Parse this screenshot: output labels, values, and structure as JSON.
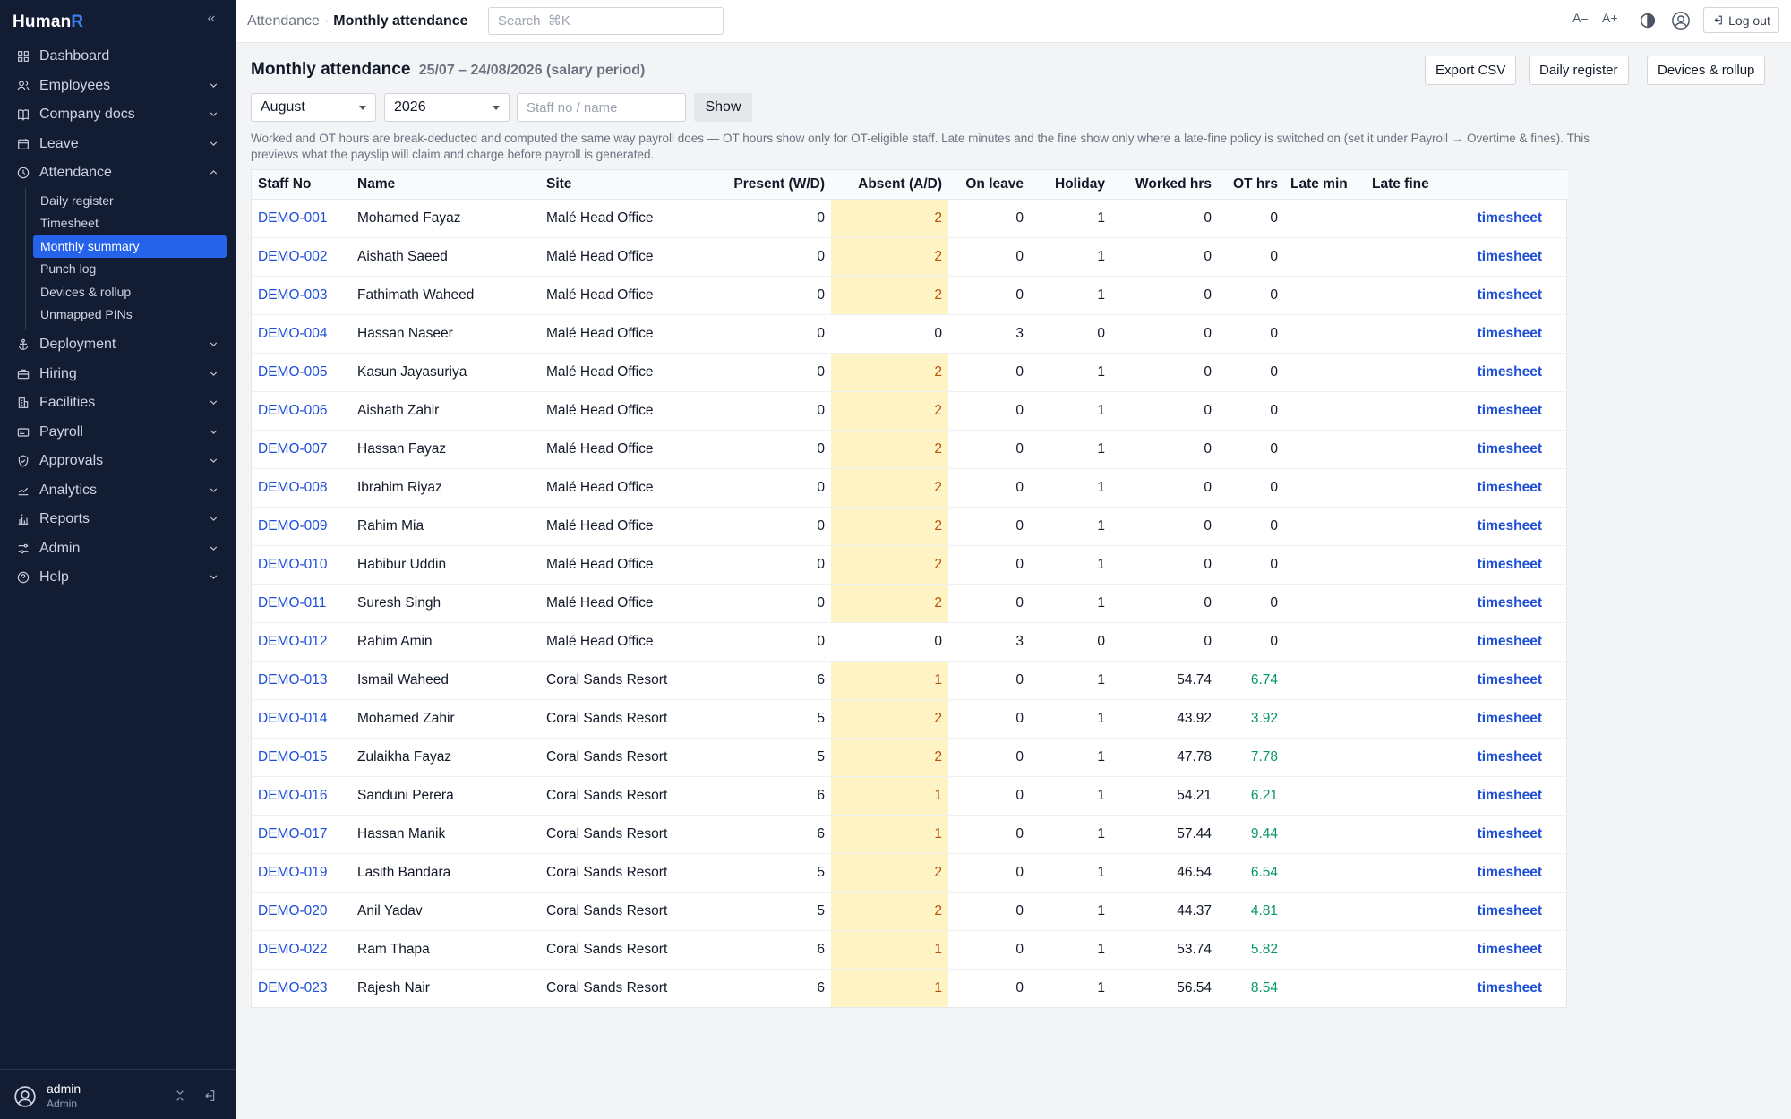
{
  "app": {
    "brand_main": "Human",
    "brand_accent": "R"
  },
  "sidebar": {
    "items": [
      {
        "key": "dashboard",
        "label": "Dashboard",
        "icon": "grid-icon",
        "chev": false
      },
      {
        "key": "employees",
        "label": "Employees",
        "icon": "users-icon",
        "chev": true
      },
      {
        "key": "company-docs",
        "label": "Company docs",
        "icon": "book-icon",
        "chev": true
      },
      {
        "key": "leave",
        "label": "Leave",
        "icon": "calendar-icon",
        "chev": true
      },
      {
        "key": "attendance",
        "label": "Attendance",
        "icon": "clock-icon",
        "chev": true,
        "open": true
      },
      {
        "key": "deployment",
        "label": "Deployment",
        "icon": "anchor-icon",
        "chev": true
      },
      {
        "key": "hiring",
        "label": "Hiring",
        "icon": "briefcase-icon",
        "chev": true
      },
      {
        "key": "facilities",
        "label": "Facilities",
        "icon": "building-icon",
        "chev": true
      },
      {
        "key": "payroll",
        "label": "Payroll",
        "icon": "wallet-icon",
        "chev": true
      },
      {
        "key": "approvals",
        "label": "Approvals",
        "icon": "shield-icon",
        "chev": true
      },
      {
        "key": "analytics",
        "label": "Analytics",
        "icon": "chart-icon",
        "chev": true
      },
      {
        "key": "reports",
        "label": "Reports",
        "icon": "report-icon",
        "chev": true
      },
      {
        "key": "admin",
        "label": "Admin",
        "icon": "sliders-icon",
        "chev": true
      },
      {
        "key": "help",
        "label": "Help",
        "icon": "help-icon",
        "chev": true
      }
    ],
    "attendance_sub": [
      {
        "label": "Daily register",
        "active": false
      },
      {
        "label": "Timesheet",
        "active": false
      },
      {
        "label": "Monthly summary",
        "active": true
      },
      {
        "label": "Punch log",
        "active": false
      },
      {
        "label": "Devices & rollup",
        "active": false
      },
      {
        "label": "Unmapped PINs",
        "active": false
      }
    ],
    "user": {
      "name": "admin",
      "role": "Admin"
    }
  },
  "topbar": {
    "breadcrumb_parent": "Attendance",
    "breadcrumb_sep": "·",
    "breadcrumb_current": "Monthly attendance",
    "search_placeholder": "Search  ⌘K",
    "font_smaller": "A–",
    "font_larger": "A+",
    "logout_label": "Log out"
  },
  "page": {
    "title": "Monthly attendance",
    "period": "25/07 – 24/08/2026 (salary period)",
    "export_label": "Export CSV",
    "daily_register_label": "Daily register",
    "devices_label": "Devices & rollup",
    "month_value": "August",
    "year_value": "2026",
    "staff_placeholder": "Staff no / name",
    "show_label": "Show",
    "note": "Worked and OT hours are break-deducted and computed the same way payroll does — OT hours show only for OT-eligible staff. Late minutes and the fine show only where a late-fine policy is switched on (set it under Payroll → Overtime & fines). This previews what the payslip will claim and charge before payroll is generated."
  },
  "table": {
    "headers": [
      "Staff No",
      "Name",
      "Site",
      "Present (W/D)",
      "Absent (A/D)",
      "On leave",
      "Holiday",
      "Worked hrs",
      "OT hrs",
      "Late min",
      "Late fine",
      ""
    ],
    "link_label": "timesheet",
    "rows": [
      {
        "staff_no": "DEMO-001",
        "name": "Mohamed Fayaz",
        "site": "Malé Head Office",
        "present": "0",
        "absent": "2",
        "on_leave": "0",
        "holiday": "1",
        "worked": "0",
        "ot": "0",
        "late_min": "",
        "late_fine": ""
      },
      {
        "staff_no": "DEMO-002",
        "name": "Aishath Saeed",
        "site": "Malé Head Office",
        "present": "0",
        "absent": "2",
        "on_leave": "0",
        "holiday": "1",
        "worked": "0",
        "ot": "0",
        "late_min": "",
        "late_fine": ""
      },
      {
        "staff_no": "DEMO-003",
        "name": "Fathimath Waheed",
        "site": "Malé Head Office",
        "present": "0",
        "absent": "2",
        "on_leave": "0",
        "holiday": "1",
        "worked": "0",
        "ot": "0",
        "late_min": "",
        "late_fine": ""
      },
      {
        "staff_no": "DEMO-004",
        "name": "Hassan Naseer",
        "site": "Malé Head Office",
        "present": "0",
        "absent": "0",
        "on_leave": "3",
        "holiday": "0",
        "worked": "0",
        "ot": "0",
        "late_min": "",
        "late_fine": ""
      },
      {
        "staff_no": "DEMO-005",
        "name": "Kasun Jayasuriya",
        "site": "Malé Head Office",
        "present": "0",
        "absent": "2",
        "on_leave": "0",
        "holiday": "1",
        "worked": "0",
        "ot": "0",
        "late_min": "",
        "late_fine": ""
      },
      {
        "staff_no": "DEMO-006",
        "name": "Aishath Zahir",
        "site": "Malé Head Office",
        "present": "0",
        "absent": "2",
        "on_leave": "0",
        "holiday": "1",
        "worked": "0",
        "ot": "0",
        "late_min": "",
        "late_fine": ""
      },
      {
        "staff_no": "DEMO-007",
        "name": "Hassan Fayaz",
        "site": "Malé Head Office",
        "present": "0",
        "absent": "2",
        "on_leave": "0",
        "holiday": "1",
        "worked": "0",
        "ot": "0",
        "late_min": "",
        "late_fine": ""
      },
      {
        "staff_no": "DEMO-008",
        "name": "Ibrahim Riyaz",
        "site": "Malé Head Office",
        "present": "0",
        "absent": "2",
        "on_leave": "0",
        "holiday": "1",
        "worked": "0",
        "ot": "0",
        "late_min": "",
        "late_fine": ""
      },
      {
        "staff_no": "DEMO-009",
        "name": "Rahim Mia",
        "site": "Malé Head Office",
        "present": "0",
        "absent": "2",
        "on_leave": "0",
        "holiday": "1",
        "worked": "0",
        "ot": "0",
        "late_min": "",
        "late_fine": ""
      },
      {
        "staff_no": "DEMO-010",
        "name": "Habibur Uddin",
        "site": "Malé Head Office",
        "present": "0",
        "absent": "2",
        "on_leave": "0",
        "holiday": "1",
        "worked": "0",
        "ot": "0",
        "late_min": "",
        "late_fine": ""
      },
      {
        "staff_no": "DEMO-011",
        "name": "Suresh Singh",
        "site": "Malé Head Office",
        "present": "0",
        "absent": "2",
        "on_leave": "0",
        "holiday": "1",
        "worked": "0",
        "ot": "0",
        "late_min": "",
        "late_fine": ""
      },
      {
        "staff_no": "DEMO-012",
        "name": "Rahim Amin",
        "site": "Malé Head Office",
        "present": "0",
        "absent": "0",
        "on_leave": "3",
        "holiday": "0",
        "worked": "0",
        "ot": "0",
        "late_min": "",
        "late_fine": ""
      },
      {
        "staff_no": "DEMO-013",
        "name": "Ismail Waheed",
        "site": "Coral Sands Resort",
        "present": "6",
        "absent": "1",
        "on_leave": "0",
        "holiday": "1",
        "worked": "54.74",
        "ot": "6.74",
        "late_min": "",
        "late_fine": ""
      },
      {
        "staff_no": "DEMO-014",
        "name": "Mohamed Zahir",
        "site": "Coral Sands Resort",
        "present": "5",
        "absent": "2",
        "on_leave": "0",
        "holiday": "1",
        "worked": "43.92",
        "ot": "3.92",
        "late_min": "",
        "late_fine": ""
      },
      {
        "staff_no": "DEMO-015",
        "name": "Zulaikha Fayaz",
        "site": "Coral Sands Resort",
        "present": "5",
        "absent": "2",
        "on_leave": "0",
        "holiday": "1",
        "worked": "47.78",
        "ot": "7.78",
        "late_min": "",
        "late_fine": ""
      },
      {
        "staff_no": "DEMO-016",
        "name": "Sanduni Perera",
        "site": "Coral Sands Resort",
        "present": "6",
        "absent": "1",
        "on_leave": "0",
        "holiday": "1",
        "worked": "54.21",
        "ot": "6.21",
        "late_min": "",
        "late_fine": ""
      },
      {
        "staff_no": "DEMO-017",
        "name": "Hassan Manik",
        "site": "Coral Sands Resort",
        "present": "6",
        "absent": "1",
        "on_leave": "0",
        "holiday": "1",
        "worked": "57.44",
        "ot": "9.44",
        "late_min": "",
        "late_fine": ""
      },
      {
        "staff_no": "DEMO-019",
        "name": "Lasith Bandara",
        "site": "Coral Sands Resort",
        "present": "5",
        "absent": "2",
        "on_leave": "0",
        "holiday": "1",
        "worked": "46.54",
        "ot": "6.54",
        "late_min": "",
        "late_fine": ""
      },
      {
        "staff_no": "DEMO-020",
        "name": "Anil Yadav",
        "site": "Coral Sands Resort",
        "present": "5",
        "absent": "2",
        "on_leave": "0",
        "holiday": "1",
        "worked": "44.37",
        "ot": "4.81",
        "late_min": "",
        "late_fine": ""
      },
      {
        "staff_no": "DEMO-022",
        "name": "Ram Thapa",
        "site": "Coral Sands Resort",
        "present": "6",
        "absent": "1",
        "on_leave": "0",
        "holiday": "1",
        "worked": "53.74",
        "ot": "5.82",
        "late_min": "",
        "late_fine": ""
      },
      {
        "staff_no": "DEMO-023",
        "name": "Rajesh Nair",
        "site": "Coral Sands Resort",
        "present": "6",
        "absent": "1",
        "on_leave": "0",
        "holiday": "1",
        "worked": "56.54",
        "ot": "8.54",
        "late_min": "",
        "late_fine": ""
      }
    ]
  },
  "colors": {
    "sidebar_bg": "#121c33",
    "accent": "#2563eb",
    "absent_bg": "#fdf3c4",
    "ot_positive": "#059669",
    "link": "#1d4ed8"
  }
}
